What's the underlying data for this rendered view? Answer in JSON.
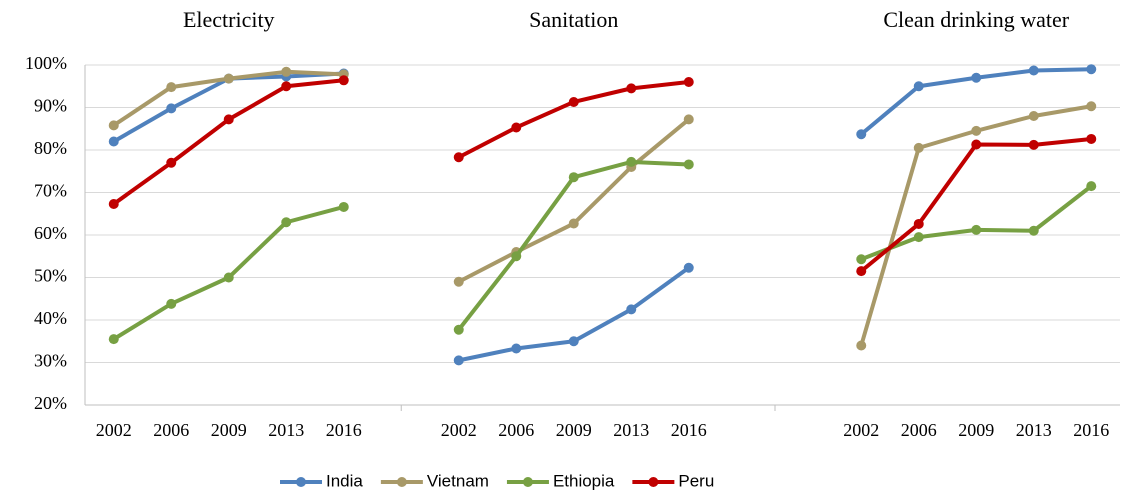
{
  "chart_data": {
    "type": "line",
    "ylim": [
      20,
      100
    ],
    "yticks": [
      {
        "value": 20,
        "label": "20%"
      },
      {
        "value": 30,
        "label": "30%"
      },
      {
        "value": 40,
        "label": "40%"
      },
      {
        "value": 50,
        "label": "50%"
      },
      {
        "value": 60,
        "label": "60%"
      },
      {
        "value": 70,
        "label": "70%"
      },
      {
        "value": 80,
        "label": "80%"
      },
      {
        "value": 90,
        "label": "90%"
      },
      {
        "value": 100,
        "label": "100%"
      }
    ],
    "grid": true,
    "legend": "bottom",
    "series": [
      {
        "name": "India",
        "color": "#4f81bd"
      },
      {
        "name": "Vietnam",
        "color": "#a89968"
      },
      {
        "name": "Ethiopia",
        "color": "#77a043"
      },
      {
        "name": "Peru",
        "color": "#c00000"
      }
    ],
    "panels": [
      {
        "title": "Electricity",
        "categories": [
          "2002",
          "2006",
          "2009",
          "2013",
          "2016"
        ],
        "values": [
          [
            82,
            89.8,
            96.8,
            97.3,
            98
          ],
          [
            85.8,
            94.8,
            96.8,
            98.4,
            97.8
          ],
          [
            35.5,
            43.8,
            50,
            63,
            66.6
          ],
          [
            67.3,
            77,
            87.2,
            95,
            96.4
          ]
        ]
      },
      {
        "title": "Sanitation",
        "categories": [
          "2002",
          "2006",
          "2009",
          "2013",
          "2016"
        ],
        "values": [
          [
            30.5,
            33.3,
            35,
            42.5,
            52.3
          ],
          [
            49,
            56,
            62.7,
            76,
            87.2
          ],
          [
            37.7,
            55,
            73.6,
            77.2,
            76.6
          ],
          [
            78.3,
            85.3,
            91.3,
            94.5,
            96
          ]
        ]
      },
      {
        "title": "Clean drinking water",
        "categories": [
          "2002",
          "2006",
          "2009",
          "2013",
          "2016"
        ],
        "values": [
          [
            83.7,
            95,
            97,
            98.7,
            99
          ],
          [
            34,
            80.5,
            84.5,
            88,
            90.3
          ],
          [
            54.3,
            59.5,
            61.2,
            61,
            71.5
          ],
          [
            51.5,
            62.6,
            81.3,
            81.2,
            82.6
          ]
        ]
      }
    ]
  }
}
